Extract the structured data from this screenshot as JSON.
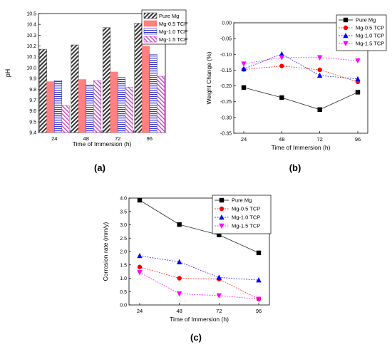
{
  "chart_data": [
    {
      "type": "bar",
      "panel_label": "(a)",
      "xlabel": "Time of Immersion (h)",
      "ylabel": "pH",
      "ylim": [
        9.4,
        10.5
      ],
      "yticks": [
        "9.4",
        "9.5",
        "9.6",
        "9.7",
        "9.8",
        "9.9",
        "10.0",
        "10.1",
        "10.2",
        "10.3",
        "10.4",
        "10.5"
      ],
      "categories": [
        "24",
        "48",
        "72",
        "96"
      ],
      "legend_position": "top-right",
      "series": [
        {
          "name": "Pure Mg",
          "values": [
            10.17,
            10.21,
            10.37,
            10.41
          ],
          "color": "#555555",
          "pattern": "diag-dark"
        },
        {
          "name": "Mg-0.5 TCP",
          "values": [
            9.87,
            9.89,
            9.96,
            10.2
          ],
          "color": "#ff7070",
          "pattern": "solid-red"
        },
        {
          "name": "Mg-1.0 TCP",
          "values": [
            9.88,
            9.84,
            9.91,
            10.12
          ],
          "color": "#3a3acc",
          "pattern": "horiz-blue"
        },
        {
          "name": "Mg-1.5 TCP",
          "values": [
            9.65,
            9.88,
            9.82,
            9.92
          ],
          "color": "#cc44cc",
          "pattern": "diag-pink"
        }
      ]
    },
    {
      "type": "line",
      "panel_label": "(b)",
      "xlabel": "Time of Immersion (h)",
      "ylabel": "Weight Change (%)",
      "ylim": [
        -0.35,
        0.0
      ],
      "yticks": [
        "0.00",
        "-0.05",
        "-0.10",
        "-0.15",
        "-0.20",
        "-0.25",
        "-0.30",
        "-0.35"
      ],
      "x": [
        "24",
        "48",
        "72",
        "96"
      ],
      "legend_position": "top-right",
      "series": [
        {
          "name": "Pure Mg",
          "values": [
            -0.205,
            -0.237,
            -0.275,
            -0.22
          ],
          "color": "#000000",
          "marker": "square"
        },
        {
          "name": "Mg-0.5 TCP",
          "values": [
            -0.148,
            -0.137,
            -0.149,
            -0.187
          ],
          "color": "#ff0000",
          "marker": "circle"
        },
        {
          "name": "Mg-1.0 TCP",
          "values": [
            -0.146,
            -0.099,
            -0.167,
            -0.178
          ],
          "color": "#0000ff",
          "marker": "triangle-up"
        },
        {
          "name": "Mg-1.5 TCP",
          "values": [
            -0.13,
            -0.11,
            -0.11,
            -0.12
          ],
          "color": "#ff00ff",
          "marker": "triangle-down"
        }
      ]
    },
    {
      "type": "line",
      "panel_label": "(c)",
      "xlabel": "Time of Immersion (h)",
      "ylabel": "Corrosion rate (mm/y)",
      "ylim": [
        0.0,
        4.0
      ],
      "yticks": [
        "0.0",
        "0.5",
        "1.0",
        "1.5",
        "2.0",
        "2.5",
        "3.0",
        "3.5",
        "4.0"
      ],
      "x": [
        "24",
        "48",
        "72",
        "96"
      ],
      "legend_position": "top-right",
      "series": [
        {
          "name": "Pure Mg",
          "values": [
            3.92,
            3.01,
            2.62,
            1.95
          ],
          "color": "#000000",
          "marker": "square"
        },
        {
          "name": "Mg-0.5 TCP",
          "values": [
            1.42,
            1.0,
            0.97,
            0.22
          ],
          "color": "#ff0000",
          "marker": "circle"
        },
        {
          "name": "Mg-1.0 TCP",
          "values": [
            1.84,
            1.61,
            1.03,
            0.93
          ],
          "color": "#0000ff",
          "marker": "triangle-up"
        },
        {
          "name": "Mg-1.5 TCP",
          "values": [
            1.22,
            0.42,
            0.35,
            0.22
          ],
          "color": "#ff00ff",
          "marker": "triangle-down"
        }
      ]
    }
  ]
}
